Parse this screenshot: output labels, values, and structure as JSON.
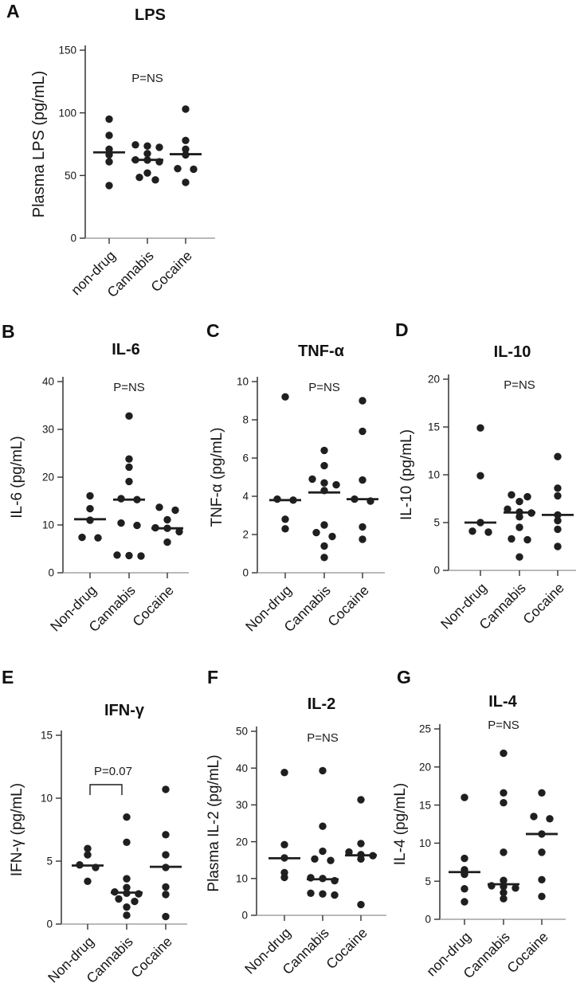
{
  "colors": {
    "dot": "#1f1f1f",
    "axis": "#333333",
    "baseline": "#8f8f8f",
    "background": "#ffffff"
  },
  "chart_data": [
    {
      "type": "scatter",
      "letter": "A",
      "title": "LPS",
      "ylabel": "Plasma LPS (pg/mL)",
      "p_label": "P=NS",
      "ylim": [
        0,
        150
      ],
      "yticks": [
        0,
        50,
        100,
        150
      ],
      "categories": [
        "non-drug",
        "Cannabis",
        "Cocaine"
      ],
      "legend": "none",
      "grid": false,
      "series": [
        {
          "name": "non-drug",
          "values": [
            95,
            82,
            71,
            66.5,
            61,
            42
          ],
          "median": 68.5
        },
        {
          "name": "Cannabis",
          "values": [
            74.5,
            73.5,
            72.5,
            67.5,
            62.5,
            62.3,
            61,
            52,
            48.5,
            46.5
          ],
          "median": 62.5
        },
        {
          "name": "Cocaine",
          "values": [
            103,
            78,
            71,
            66.5,
            55.5,
            55,
            44.5
          ],
          "median": 67
        }
      ]
    },
    {
      "type": "scatter",
      "letter": "B",
      "title": "IL-6",
      "ylabel": "IL-6 (pg/mL)",
      "p_label": "P=NS",
      "ylim": [
        0,
        40
      ],
      "yticks": [
        0,
        10,
        20,
        30,
        40
      ],
      "categories": [
        "Non-drug",
        "Cannabis",
        "Cocaine"
      ],
      "legend": "none",
      "grid": false,
      "series": [
        {
          "name": "Non-drug",
          "values": [
            16.1,
            13.4,
            11,
            7.4,
            7.3
          ],
          "median": 11.2
        },
        {
          "name": "Cannabis",
          "values": [
            32.8,
            23.8,
            22.1,
            19.1,
            15.5,
            15.3,
            10.4,
            9.9,
            3.7,
            3.6,
            3.5
          ],
          "median": 15.3
        },
        {
          "name": "Cocaine",
          "values": [
            13.7,
            13.1,
            11.1,
            9.4,
            9.3,
            8.6,
            6.4
          ],
          "median": 9.3
        }
      ]
    },
    {
      "type": "scatter",
      "letter": "C",
      "title": "TNF-α",
      "ylabel": "TNF-α (pg/mL)",
      "p_label": "P=NS",
      "ylim": [
        0,
        10
      ],
      "yticks": [
        0,
        2,
        4,
        6,
        8,
        10
      ],
      "categories": [
        "Non-drug",
        "Cannabis",
        "Cocaine"
      ],
      "legend": "none",
      "grid": false,
      "series": [
        {
          "name": "Non-drug",
          "values": [
            9.2,
            3.85,
            3.8,
            2.8,
            2.3
          ],
          "median": 3.8
        },
        {
          "name": "Cannabis",
          "values": [
            6.4,
            5.6,
            4.9,
            4.7,
            4.6,
            4.3,
            2.5,
            2.1,
            1.9,
            1.4,
            0.8
          ],
          "median": 4.2
        },
        {
          "name": "Cocaine",
          "values": [
            9,
            7.4,
            4.85,
            3.85,
            3.75,
            2.4,
            1.75
          ],
          "median": 3.85
        }
      ]
    },
    {
      "type": "scatter",
      "letter": "D",
      "title": "IL-10",
      "ylabel": "IL-10 (pg/mL)",
      "p_label": "P=NS",
      "ylim": [
        0,
        20
      ],
      "yticks": [
        0,
        5,
        10,
        15,
        20
      ],
      "categories": [
        "Non-drug",
        "Cannabis",
        "Cocaine"
      ],
      "legend": "none",
      "grid": false,
      "series": [
        {
          "name": "Non-drug",
          "values": [
            14.9,
            9.9,
            5,
            4.1,
            4
          ],
          "median": 5
        },
        {
          "name": "Cannabis",
          "values": [
            7.9,
            7.7,
            7.2,
            6.4,
            6.1,
            6,
            5.6,
            4.5,
            3.3,
            3.2,
            1.4
          ],
          "median": 6.05
        },
        {
          "name": "Cocaine",
          "values": [
            11.9,
            8.6,
            7.8,
            5.8,
            5.2,
            4.3,
            2.5
          ],
          "median": 5.8
        }
      ]
    },
    {
      "type": "scatter",
      "letter": "E",
      "title": "IFN-γ",
      "ylabel": "IFN-γ (pg/mL)",
      "p_label": "P=0.07",
      "p_bracket": [
        0,
        1
      ],
      "ylim": [
        0,
        15
      ],
      "yticks": [
        0,
        5,
        10,
        15
      ],
      "categories": [
        "Non-drug",
        "Cannabis",
        "Cocaine"
      ],
      "legend": "none",
      "grid": false,
      "series": [
        {
          "name": "Non-drug",
          "values": [
            6,
            5.5,
            4.7,
            4.5,
            3.4
          ],
          "median": 4.65
        },
        {
          "name": "Cannabis",
          "values": [
            8.5,
            6.5,
            3.6,
            2.9,
            2.55,
            2.45,
            2.4,
            2,
            1.8,
            1.35,
            0.7
          ],
          "median": 2.5
        },
        {
          "name": "Cocaine",
          "values": [
            10.7,
            7.1,
            5.5,
            4.5,
            2.95,
            2.35,
            0.6
          ],
          "median": 4.55
        }
      ]
    },
    {
      "type": "scatter",
      "letter": "F",
      "title": "IL-2",
      "ylabel": "Plasma IL-2 (pg/mL)",
      "p_label": "P=NS",
      "ylim": [
        0,
        50
      ],
      "yticks": [
        0,
        10,
        20,
        30,
        40,
        50
      ],
      "categories": [
        "Non-drug",
        "Cannabis",
        "Cocaine"
      ],
      "legend": "none",
      "grid": false,
      "series": [
        {
          "name": "Non-drug",
          "values": [
            38.8,
            19.2,
            15.6,
            11.6,
            10.3
          ],
          "median": 15.5
        },
        {
          "name": "Cannabis",
          "values": [
            39.3,
            24.2,
            17.4,
            15.3,
            14.9,
            10.2,
            10,
            9.4,
            6,
            5.8,
            5.5
          ],
          "median": 9.8
        },
        {
          "name": "Cocaine",
          "values": [
            31.4,
            19.5,
            17.2,
            16.5,
            16.2,
            15.3,
            2.9
          ],
          "median": 16.3
        }
      ]
    },
    {
      "type": "scatter",
      "letter": "G",
      "title": "IL-4",
      "ylabel": "IL-4 (pg/mL)",
      "p_label": "P=NS",
      "ylim": [
        0,
        25
      ],
      "yticks": [
        0,
        5,
        10,
        15,
        20,
        25
      ],
      "categories": [
        "non-drug",
        "Cannabis",
        "Cocaine"
      ],
      "legend": "none",
      "grid": false,
      "series": [
        {
          "name": "non-drug",
          "values": [
            16,
            8,
            6.5,
            5.9,
            4,
            2.3
          ],
          "median": 6.2
        },
        {
          "name": "Cannabis",
          "values": [
            21.8,
            16.6,
            15.3,
            8.8,
            5.1,
            4.4,
            4.3,
            4.1,
            3.5,
            2.7
          ],
          "median": 4.6
        },
        {
          "name": "Cocaine",
          "values": [
            16.6,
            13.5,
            13.2,
            11.2,
            8.8,
            5.2,
            3
          ],
          "median": 11.2
        }
      ]
    }
  ]
}
